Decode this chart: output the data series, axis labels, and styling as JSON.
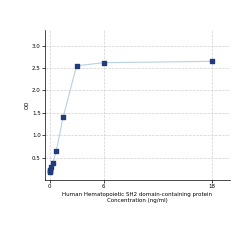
{
  "x": [
    0,
    0.047,
    0.094,
    0.188,
    0.375,
    0.75,
    1.5,
    3,
    6,
    18
  ],
  "y": [
    0.175,
    0.195,
    0.22,
    0.28,
    0.38,
    0.65,
    1.4,
    2.55,
    2.62,
    2.65
  ],
  "xlabel_line1": "Human Hematopoietic SH2 domain-containing protein",
  "xlabel_line2": "Concentration (ng/ml)",
  "ylabel": "OD",
  "xlim": [
    -0.5,
    20
  ],
  "ylim": [
    0,
    3.35
  ],
  "yticks": [
    0.5,
    1.0,
    1.5,
    2.0,
    2.5,
    3.0
  ],
  "xticks": [
    0,
    6,
    18
  ],
  "line_color": "#b8d0e0",
  "marker_color": "#1f3d7a",
  "grid_color": "#d0d0d0",
  "bg_color": "#ffffff",
  "marker_size": 3.5,
  "line_width": 0.8,
  "label_fontsize": 4.0,
  "tick_fontsize": 4.0
}
